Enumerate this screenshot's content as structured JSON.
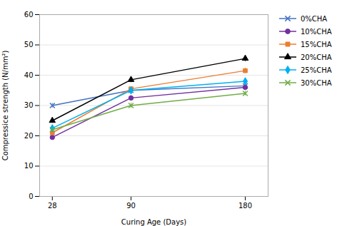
{
  "chart_data": {
    "type": "line",
    "xlabel": "Curing Age (Days)",
    "ylabel": "Compressice strength (N/mm²)",
    "x": [
      28,
      90,
      180
    ],
    "xlim": [
      18,
      198
    ],
    "xticks": [
      28,
      90,
      180
    ],
    "ylim": [
      0,
      60
    ],
    "yticks": [
      0,
      10,
      20,
      30,
      40,
      50,
      60
    ],
    "grid": true,
    "legend": "right",
    "series": [
      {
        "name": "0%CHA",
        "color": "#4472C4",
        "marker": "x",
        "values": [
          30.0,
          35.0,
          36.5
        ],
        "yerr": [
          0.8,
          0.8,
          0.8
        ]
      },
      {
        "name": "10%CHA",
        "color": "#7030A0",
        "marker": "circle",
        "values": [
          19.5,
          32.5,
          36.0
        ],
        "yerr": [
          0.7,
          0.8,
          0.8
        ]
      },
      {
        "name": "15%CHA",
        "color": "#ED7D31",
        "marker": "square",
        "values": [
          21.0,
          35.5,
          41.5
        ],
        "yerr": [
          0.7,
          0.8,
          0.9
        ]
      },
      {
        "name": "20%CHA",
        "color": "#000000",
        "marker": "triangle",
        "values": [
          25.0,
          38.5,
          45.5
        ],
        "yerr": [
          0.8,
          0.9,
          1.0
        ]
      },
      {
        "name": "25%CHA",
        "color": "#00B0F0",
        "marker": "diamond",
        "values": [
          22.5,
          35.0,
          38.0
        ],
        "yerr": [
          0.7,
          0.8,
          0.8
        ]
      },
      {
        "name": "30%CHA",
        "color": "#70AD47",
        "marker": "x",
        "values": [
          22.0,
          30.0,
          34.0
        ],
        "yerr": [
          0.7,
          0.9,
          0.8
        ]
      }
    ]
  }
}
